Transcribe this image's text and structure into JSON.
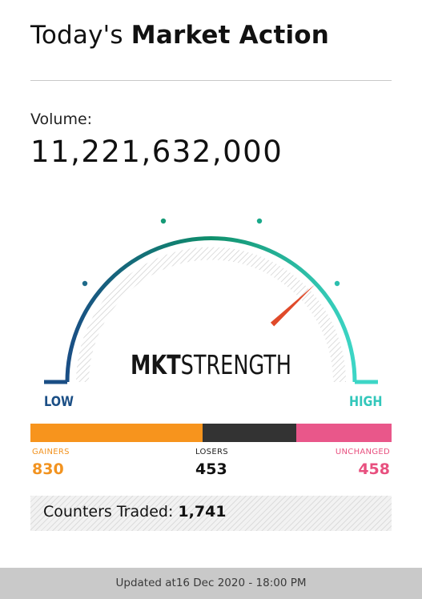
{
  "header": {
    "title_regular": "Today's",
    "title_bold": "Market Action"
  },
  "volume": {
    "label": "Volume:",
    "value": "11,221,632,000"
  },
  "gauge": {
    "title_bold": "MKT",
    "title_regular": "STRENGTH",
    "low_label": "LOW",
    "high_label": "HIGH",
    "needle_level": 0.76,
    "colors": {
      "low": "#1a4e85",
      "mid": "#0f8f6b",
      "high": "#3dd6c6",
      "needle": "#e04a2a",
      "dot": "#159a76"
    }
  },
  "breadth": {
    "gainers": {
      "label": "GAINERS",
      "value": "830",
      "count": 830,
      "color": "#f7941d"
    },
    "losers": {
      "label": "LOSERS",
      "value": "453",
      "count": 453,
      "color": "#333333"
    },
    "unchanged": {
      "label": "UNCHANGED",
      "value": "458",
      "count": 458,
      "color": "#e9578a"
    }
  },
  "counters": {
    "label": "Counters Traded:",
    "value": "1,741"
  },
  "footer": {
    "text": "Updated at16 Dec 2020 - 18:00 PM"
  }
}
